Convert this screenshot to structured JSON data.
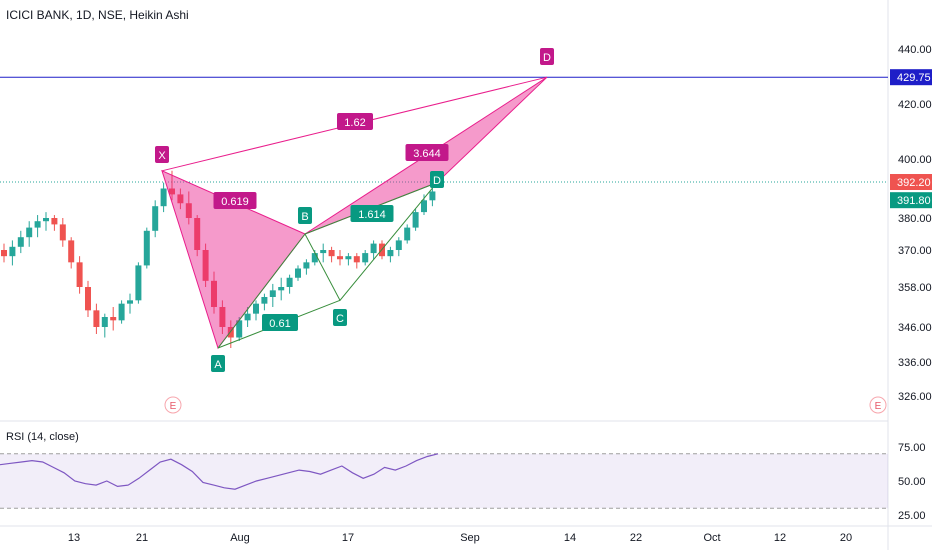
{
  "chart_data": {
    "type": "candlestick",
    "title": "ICICI BANK, 1D, NSE, Heikin Ashi",
    "colors": {
      "up": "#26a69a",
      "down": "#ef5350",
      "bull": "#089981",
      "bear_fill": "#e91e8c",
      "rsi": "#7e57c2",
      "hline": "#1e1ec8",
      "price_line": "#26a69a"
    },
    "y_axis": {
      "ticks": [
        "440.00",
        "420.00",
        "400.00",
        "380.00",
        "370.00",
        "358.00",
        "346.00",
        "336.00",
        "326.00"
      ]
    },
    "x_axis": {
      "ticks": [
        "13",
        "21",
        "Aug",
        "17",
        "Sep",
        "14",
        "22",
        "Oct",
        "12",
        "20"
      ]
    },
    "price_tags": [
      {
        "label": "429.75",
        "value": 429.75,
        "color": "#1e1ec8"
      },
      {
        "label": "392.20",
        "value": 392.2,
        "color": "#ef5350"
      },
      {
        "label": "391.80",
        "value": 391.8,
        "color": "#089981"
      }
    ],
    "candles": [
      [
        370,
        372,
        366,
        368
      ],
      [
        368,
        373,
        365,
        371
      ],
      [
        371,
        376,
        369,
        374
      ],
      [
        374,
        379,
        371,
        377
      ],
      [
        377,
        381,
        374,
        379
      ],
      [
        379,
        382,
        376,
        380
      ],
      [
        380,
        381,
        376,
        378
      ],
      [
        378,
        380,
        371,
        373
      ],
      [
        373,
        374,
        364,
        366
      ],
      [
        366,
        368,
        356,
        358
      ],
      [
        358,
        360,
        349,
        351
      ],
      [
        351,
        353,
        344,
        346
      ],
      [
        346,
        350,
        343,
        349
      ],
      [
        349,
        352,
        345,
        348
      ],
      [
        348,
        354,
        347,
        353
      ],
      [
        353,
        356,
        350,
        354
      ],
      [
        354,
        366,
        353,
        365
      ],
      [
        365,
        377,
        364,
        376
      ],
      [
        376,
        386,
        374,
        384
      ],
      [
        384,
        392,
        382,
        390
      ],
      [
        390,
        396,
        386,
        388
      ],
      [
        388,
        390,
        383,
        385
      ],
      [
        385,
        389,
        378,
        380
      ],
      [
        380,
        381,
        368,
        370
      ],
      [
        370,
        372,
        358,
        360
      ],
      [
        360,
        363,
        350,
        352
      ],
      [
        352,
        354,
        344,
        346
      ],
      [
        346,
        348,
        340,
        343
      ],
      [
        343,
        349,
        342,
        348
      ],
      [
        348,
        352,
        346,
        350
      ],
      [
        350,
        354,
        348,
        353
      ],
      [
        353,
        356,
        351,
        355
      ],
      [
        355,
        359,
        352,
        357
      ],
      [
        357,
        361,
        354,
        358
      ],
      [
        358,
        362,
        356,
        361
      ],
      [
        361,
        365,
        360,
        364
      ],
      [
        364,
        367,
        362,
        366
      ],
      [
        366,
        370,
        365,
        369
      ],
      [
        369,
        372,
        366,
        370
      ],
      [
        370,
        371,
        366,
        368
      ],
      [
        368,
        370,
        365,
        367
      ],
      [
        367,
        369,
        365,
        368
      ],
      [
        368,
        369,
        364,
        366
      ],
      [
        366,
        370,
        365,
        369
      ],
      [
        369,
        373,
        367,
        372
      ],
      [
        372,
        373,
        367,
        368
      ],
      [
        368,
        371,
        366,
        370
      ],
      [
        370,
        374,
        368,
        373
      ],
      [
        373,
        378,
        372,
        377
      ],
      [
        377,
        383,
        376,
        382
      ],
      [
        382,
        388,
        381,
        386
      ],
      [
        386,
        390,
        384,
        389
      ]
    ],
    "patterns": [
      {
        "name": "bearish-bat",
        "labels": [
          "X",
          "A",
          "B",
          "D"
        ],
        "ratios": [
          "0.619",
          "1.62",
          "3.644"
        ]
      },
      {
        "name": "bullish-bat",
        "labels": [
          "A",
          "B",
          "C",
          "D"
        ],
        "ratios": [
          "0.61",
          "1.614"
        ]
      }
    ],
    "earnings_labels": [
      "E",
      "E"
    ],
    "rsi": {
      "label": "RSI (14, close)",
      "ticks": [
        "75.00",
        "50.00",
        "25.00"
      ],
      "values": [
        62,
        63,
        64,
        65,
        64,
        60,
        56,
        50,
        48,
        47,
        50,
        46,
        47,
        52,
        58,
        64,
        66,
        62,
        57,
        49,
        47,
        45,
        44,
        47,
        50,
        52,
        54,
        56,
        58,
        57,
        55,
        58,
        61,
        56,
        52,
        55,
        60,
        58,
        61,
        65,
        68,
        70
      ]
    }
  }
}
